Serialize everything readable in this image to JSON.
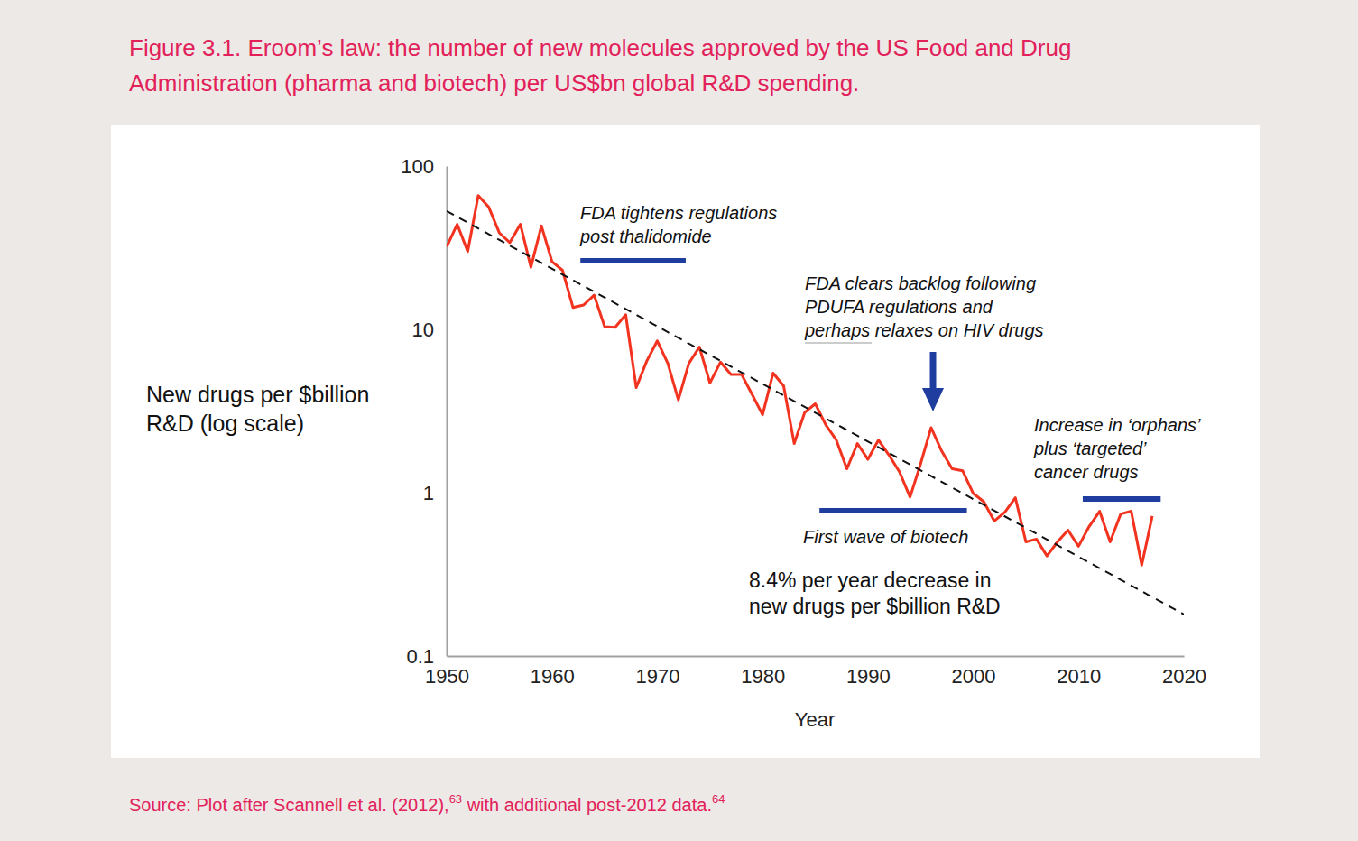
{
  "chart_data": {
    "type": "line",
    "title": [
      "Figure 3.1. Eroom’s law: the number of new molecules approved by the US Food and Drug",
      "Administration (pharma and biotech) per US$bn global R&D spending."
    ],
    "y_label": [
      "New drugs per $billion",
      "R&D (log scale)"
    ],
    "x_label": "Year",
    "source": [
      "Source: Plot after Scannell et al. (2012),",
      "63",
      " with additional post-2012 data.",
      "64"
    ],
    "log": "y",
    "xlim": [
      1950,
      2020
    ],
    "xticks": [
      1950,
      1960,
      1970,
      1980,
      1990,
      2000,
      2010,
      2020
    ],
    "ylim": [
      0.1,
      100
    ],
    "yticks": [
      0.1,
      1,
      10,
      100
    ],
    "series": [
      {
        "color": "#f2331f",
        "line_style": "solid",
        "x": [
          1950,
          1951,
          1952,
          1953,
          1954,
          1955,
          1956,
          1957,
          1958,
          1959,
          1960,
          1961,
          1962,
          1963,
          1964,
          1965,
          1966,
          1967,
          1968,
          1969,
          1970,
          1971,
          1972,
          1973,
          1974,
          1975,
          1976,
          1977,
          1978,
          1979,
          1980,
          1981,
          1982,
          1983,
          1984,
          1985,
          1986,
          1987,
          1988,
          1989,
          1990,
          1991,
          1992,
          1993,
          1994,
          1995,
          1996,
          1997,
          1998,
          1999,
          2000,
          2001,
          2002,
          2003,
          2004,
          2005,
          2006,
          2007,
          2008,
          2009,
          2010,
          2011,
          2012,
          2013,
          2014,
          2015,
          2016,
          2017
        ],
        "values": [
          32,
          44,
          30,
          66,
          56,
          39,
          34,
          44,
          24,
          43,
          26,
          23,
          13.6,
          14.1,
          16.2,
          10.4,
          10.3,
          12.3,
          4.4,
          6.4,
          8.5,
          6.2,
          3.7,
          6.2,
          7.8,
          4.7,
          6.3,
          5.3,
          5.3,
          4.0,
          3.0,
          5.4,
          4.5,
          2.0,
          3.1,
          3.5,
          2.6,
          2.1,
          1.4,
          2.0,
          1.6,
          2.1,
          1.7,
          1.34,
          0.94,
          1.5,
          2.5,
          1.8,
          1.4,
          1.36,
          0.99,
          0.88,
          0.67,
          0.76,
          0.93,
          0.5,
          0.52,
          0.41,
          0.5,
          0.59,
          0.47,
          0.62,
          0.77,
          0.5,
          0.74,
          0.77,
          0.36,
          0.72
        ]
      },
      {
        "color": "#111111",
        "line_style": "dashed",
        "x": [
          1950,
          2020
        ],
        "values": [
          53,
          0.18
        ]
      }
    ],
    "annotations": [
      {
        "text": [
          "FDA tightens regulations",
          "post thalidomide"
        ],
        "period": [
          1962.7,
          1972.7
        ],
        "color": "#1f3d9e"
      },
      {
        "text": [
          "FDA clears backlog following",
          "PDUFA regulations and",
          "perhaps relaxes on HIV drugs"
        ],
        "color": "#1f3d9e"
      },
      {
        "text": [
          "First wave of biotech"
        ],
        "period": [
          1985.4,
          1999.4
        ],
        "color": "#1f3d9e"
      },
      {
        "text": [
          "Increase in ‘orphans’",
          "plus ‘targeted’",
          "cancer drugs"
        ],
        "period": [
          2010.4,
          2017.8
        ],
        "color": "#1f3d9e"
      },
      {
        "text": [
          "8.4% per year decrease in",
          "new drugs per $billion R&D"
        ]
      }
    ]
  }
}
